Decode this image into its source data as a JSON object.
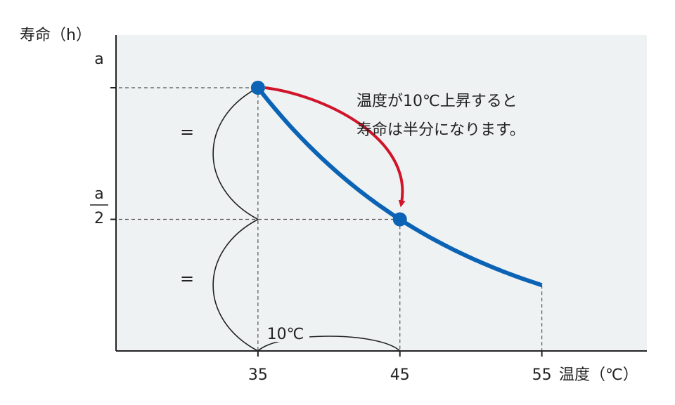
{
  "chart_data": {
    "type": "line",
    "title": "",
    "ylabel": "寿命（h）",
    "xlabel": "温度（℃）",
    "x_ticks": [
      "35",
      "45",
      "55"
    ],
    "y_ticks": {
      "a": "a",
      "half_num": "a",
      "half_den": "2"
    },
    "xlim": [
      25,
      62.4
    ],
    "ylim": [
      0,
      1.2
    ],
    "series": [
      {
        "points": [
          {
            "x": 35,
            "y": 1.0
          },
          {
            "x": 40,
            "y": 0.7071
          },
          {
            "x": 45,
            "y": 0.5
          },
          {
            "x": 50,
            "y": 0.3536
          },
          {
            "x": 55,
            "y": 0.25
          }
        ]
      }
    ],
    "highlighted_points": [
      {
        "x": 35,
        "y": 1.0
      },
      {
        "x": 45,
        "y": 0.5
      }
    ],
    "annotations": {
      "note_line1": "温度が10℃上昇すると",
      "note_line2": "寿命は半分になります。",
      "equal_sign": "=",
      "interval_label": "10℃"
    },
    "colors": {
      "curve": "#0a63b5",
      "arrow": "#d0152a",
      "plot_bg": "#eff2f3",
      "axis": "#222222"
    },
    "grid": false
  }
}
